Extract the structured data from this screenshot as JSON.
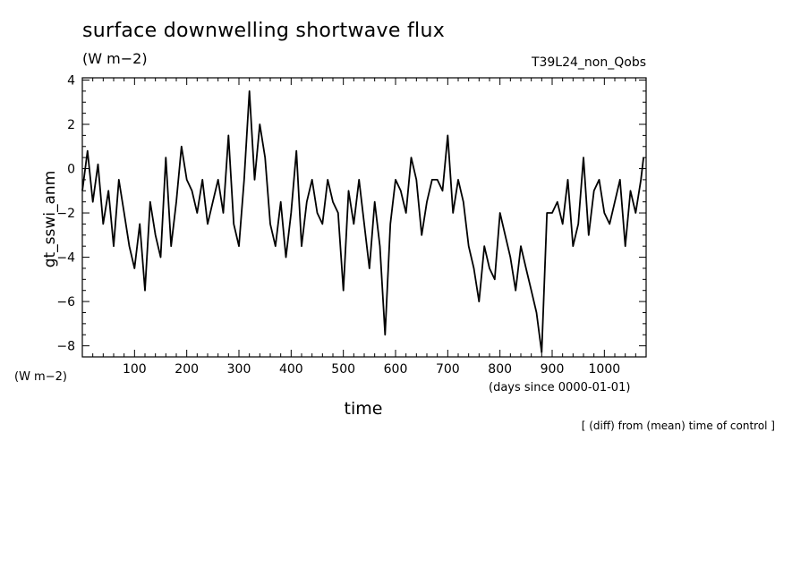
{
  "header": {
    "title": "surface downwelling shortwave flux",
    "units": "(W m−2)",
    "run_name": "T39L24_non_Qobs"
  },
  "footer": {
    "note": "[ (diff) from (mean) time of control ]"
  },
  "chart_data": {
    "type": "line",
    "title": "surface downwelling shortwave flux",
    "ylabel": "gt_sswi_anm",
    "yunits": "(W m−2)",
    "xlabel": "time",
    "xunits": "(days since 0000-01-01)",
    "xlim": [
      0,
      1080
    ],
    "ylim": [
      -8.5,
      4.1
    ],
    "xticks": [
      100,
      200,
      300,
      400,
      500,
      600,
      700,
      800,
      900,
      1000
    ],
    "xtick_labels": [
      "100",
      "200",
      "300",
      "400",
      "500",
      "600",
      "700",
      "800",
      "900",
      "1000"
    ],
    "yticks": [
      -8,
      -6,
      -4,
      -2,
      0,
      2,
      4
    ],
    "ytick_labels": [
      "−8",
      "−6",
      "−4",
      "−2",
      "0",
      "2",
      "4"
    ],
    "grid": false,
    "series": [
      {
        "x": [
          0,
          10,
          20,
          30,
          40,
          50,
          60,
          70,
          80,
          90,
          100,
          110,
          120,
          130,
          140,
          150,
          160,
          170,
          180,
          190,
          200,
          210,
          220,
          230,
          240,
          250,
          260,
          270,
          280,
          290,
          300,
          310,
          320,
          330,
          340,
          350,
          360,
          370,
          380,
          390,
          400,
          410,
          420,
          430,
          440,
          450,
          460,
          470,
          480,
          490,
          500,
          510,
          520,
          530,
          540,
          550,
          560,
          570,
          580,
          590,
          600,
          610,
          620,
          630,
          640,
          650,
          660,
          670,
          680,
          690,
          700,
          710,
          720,
          730,
          740,
          750,
          760,
          770,
          780,
          790,
          800,
          810,
          820,
          830,
          840,
          850,
          860,
          870,
          880,
          890,
          900,
          910,
          920,
          930,
          940,
          950,
          960,
          970,
          980,
          990,
          1000,
          1010,
          1020,
          1030,
          1040,
          1050,
          1060,
          1070,
          1075
        ],
        "y": [
          -1,
          0.8,
          -1.5,
          0.2,
          -2.5,
          -1,
          -3.5,
          -0.5,
          -2,
          -3.5,
          -4.5,
          -2.5,
          -5.5,
          -1.5,
          -3,
          -4,
          0.5,
          -3.5,
          -1.5,
          1,
          -0.5,
          -1,
          -2,
          -0.5,
          -2.5,
          -1.5,
          -0.5,
          -2,
          1.5,
          -2.5,
          -3.5,
          -0.5,
          3.5,
          -0.5,
          2,
          0.5,
          -2.5,
          -3.5,
          -1.5,
          -4,
          -2,
          0.8,
          -3.5,
          -1.5,
          -0.5,
          -2,
          -2.5,
          -0.5,
          -1.5,
          -2,
          -5.5,
          -1,
          -2.5,
          -0.5,
          -2.5,
          -4.5,
          -1.5,
          -3.5,
          -7.5,
          -2.5,
          -0.5,
          -1,
          -2,
          0.5,
          -0.5,
          -3,
          -1.5,
          -0.5,
          -0.5,
          -1,
          1.5,
          -2,
          -0.5,
          -1.5,
          -3.5,
          -4.5,
          -6,
          -3.5,
          -4.5,
          -5,
          -2,
          -3,
          -4,
          -5.5,
          -3.5,
          -4.5,
          -5.5,
          -6.5,
          -8.3,
          -2,
          -2,
          -1.5,
          -2.5,
          -0.5,
          -3.5,
          -2.5,
          0.5,
          -3,
          -1,
          -0.5,
          -2,
          -2.5,
          -1.5,
          -0.5,
          -3.5,
          -1,
          -2,
          -0.5,
          0.5
        ]
      }
    ]
  }
}
